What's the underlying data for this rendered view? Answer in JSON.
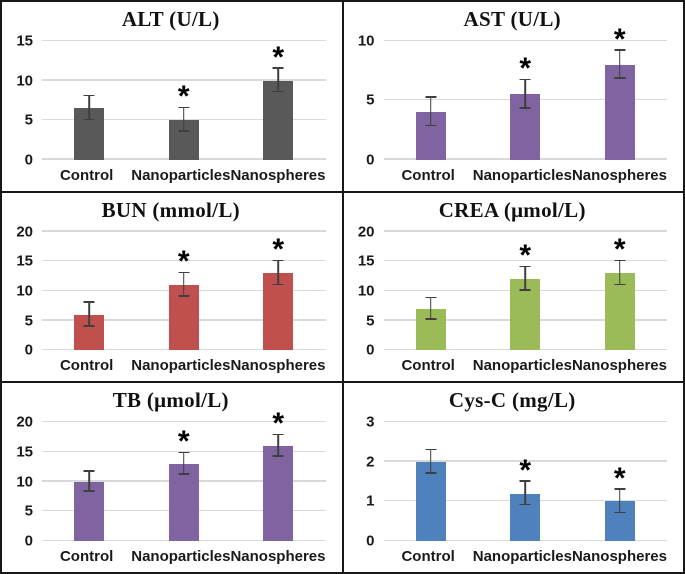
{
  "figure": {
    "layout": "2x3-grid",
    "significance_marker": "*",
    "gridline_color": "#d9d9d9",
    "error_bar_color": "#3f3f3f",
    "border_color": "#181818"
  },
  "chart_data": [
    {
      "type": "bar",
      "title": "ALT (U/L)",
      "categories": [
        "Control",
        "Nanoparticles",
        "Nanospheres"
      ],
      "values": [
        6.5,
        5,
        10
      ],
      "errors": [
        1.5,
        1.5,
        1.5
      ],
      "significant": [
        false,
        true,
        true
      ],
      "yticks": [
        0,
        5,
        10,
        15
      ],
      "ylim": [
        0,
        15
      ],
      "bar_color": "#595959",
      "grid": true,
      "legend": false
    },
    {
      "type": "bar",
      "title": "AST (U/L)",
      "categories": [
        "Control",
        "Nanoparticles",
        "Nanospheres"
      ],
      "values": [
        4,
        5.5,
        8
      ],
      "errors": [
        1.2,
        1.2,
        1.2
      ],
      "significant": [
        false,
        true,
        true
      ],
      "yticks": [
        0,
        5,
        10
      ],
      "ylim": [
        0,
        10
      ],
      "bar_color": "#8064a2",
      "grid": true,
      "legend": false
    },
    {
      "type": "bar",
      "title": "BUN (mmol/L)",
      "categories": [
        "Control",
        "Nanoparticles",
        "Nanospheres"
      ],
      "values": [
        6,
        11,
        13
      ],
      "errors": [
        2,
        2,
        2
      ],
      "significant": [
        false,
        true,
        true
      ],
      "yticks": [
        0,
        5,
        10,
        15,
        20
      ],
      "ylim": [
        0,
        20
      ],
      "bar_color": "#c0504d",
      "grid": true,
      "legend": false
    },
    {
      "type": "bar",
      "title": "CREA (μmol/L)",
      "categories": [
        "Control",
        "Nanoparticles",
        "Nanospheres"
      ],
      "values": [
        7,
        12,
        13
      ],
      "errors": [
        1.8,
        2,
        2
      ],
      "significant": [
        false,
        true,
        true
      ],
      "yticks": [
        0,
        5,
        10,
        15,
        20
      ],
      "ylim": [
        0,
        20
      ],
      "bar_color": "#9bbb59",
      "grid": true,
      "legend": false
    },
    {
      "type": "bar",
      "title": "TB (μmol/L)",
      "categories": [
        "Control",
        "Nanoparticles",
        "Nanospheres"
      ],
      "values": [
        10,
        13,
        16
      ],
      "errors": [
        1.7,
        1.8,
        1.8
      ],
      "significant": [
        false,
        true,
        true
      ],
      "yticks": [
        0,
        5,
        10,
        15,
        20
      ],
      "ylim": [
        0,
        20
      ],
      "bar_color": "#8064a2",
      "grid": true,
      "legend": false
    },
    {
      "type": "bar",
      "title": "Cys-C (mg/L)",
      "categories": [
        "Control",
        "Nanoparticles",
        "Nanospheres"
      ],
      "values": [
        2,
        1.2,
        1
      ],
      "errors": [
        0.3,
        0.3,
        0.3
      ],
      "significant": [
        false,
        true,
        true
      ],
      "yticks": [
        0,
        1,
        2,
        3
      ],
      "ylim": [
        0,
        3
      ],
      "bar_color": "#4f81bd",
      "grid": true,
      "legend": false
    }
  ]
}
